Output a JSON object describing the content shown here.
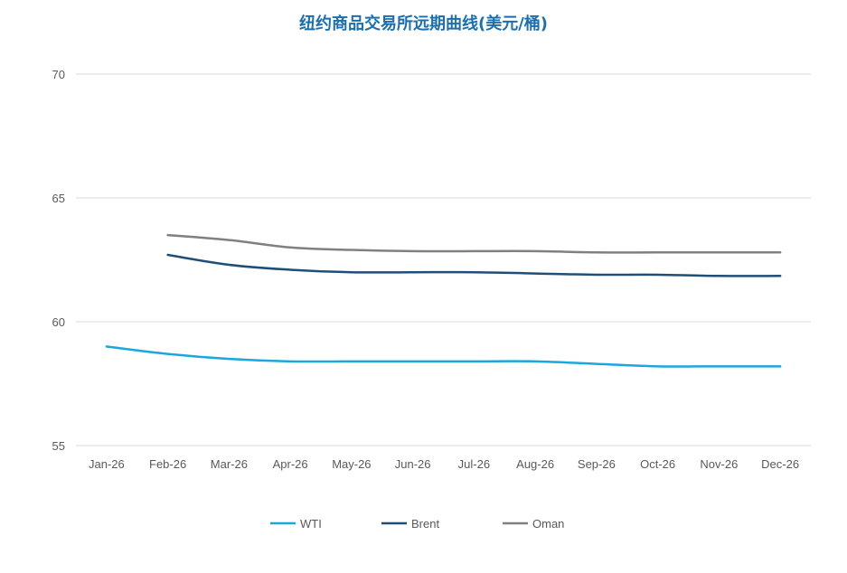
{
  "chart_data": {
    "type": "line",
    "title": "纽约商品交易所远期曲线(美元/桶)",
    "categories": [
      "Jan-26",
      "Feb-26",
      "Mar-26",
      "Apr-26",
      "May-26",
      "Jun-26",
      "Jul-26",
      "Aug-26",
      "Sep-26",
      "Oct-26",
      "Nov-26",
      "Dec-26"
    ],
    "ylim": [
      55,
      70
    ],
    "yticks": [
      "55",
      "60",
      "65",
      "70"
    ],
    "grid": true,
    "legend_position": "bottom",
    "series": [
      {
        "name": "WTI",
        "color": "#1aa7dd",
        "values": [
          59.0,
          58.7,
          58.5,
          58.4,
          58.4,
          58.4,
          58.4,
          58.4,
          58.3,
          58.2,
          58.2,
          58.2
        ]
      },
      {
        "name": "Brent",
        "color": "#1f4e79",
        "values": [
          null,
          62.7,
          62.3,
          62.1,
          62.0,
          62.0,
          62.0,
          61.95,
          61.9,
          61.9,
          61.85,
          61.85
        ]
      },
      {
        "name": "Oman",
        "color": "#808080",
        "values": [
          null,
          63.5,
          63.3,
          63.0,
          62.9,
          62.85,
          62.85,
          62.85,
          62.8,
          62.8,
          62.8,
          62.8
        ]
      }
    ]
  }
}
